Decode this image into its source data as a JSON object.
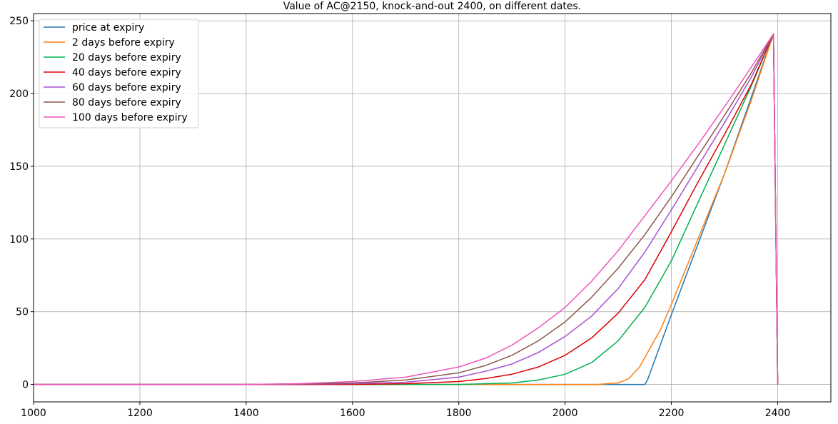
{
  "chart_data": {
    "type": "line",
    "title": "Value of AC@2150, knock-and-out 2400, on different dates.",
    "xlabel": "",
    "ylabel": "",
    "xlim": [
      1000,
      2500
    ],
    "ylim": [
      -12,
      255
    ],
    "xticks": [
      1000,
      1200,
      1400,
      1600,
      1800,
      2000,
      2200,
      2400
    ],
    "yticks": [
      0,
      50,
      100,
      150,
      200,
      250
    ],
    "grid": true,
    "legend_position": "top-left",
    "series": [
      {
        "name": "price at expiry",
        "color": "#1f77b4",
        "x": [
          1000,
          1500,
          2000,
          2140,
          2150,
          2155,
          2200,
          2300,
          2392,
          2400
        ],
        "y": [
          0,
          0,
          0,
          0,
          0,
          3,
          48,
          145,
          241,
          0
        ]
      },
      {
        "name": "2 days before expiry",
        "color": "#ff7f0e",
        "x": [
          1000,
          1500,
          2000,
          2060,
          2080,
          2100,
          2120,
          2140,
          2160,
          2180,
          2200,
          2250,
          2300,
          2350,
          2392,
          2400
        ],
        "y": [
          0,
          0,
          0,
          0,
          0.5,
          1,
          4,
          12,
          25,
          38,
          55,
          100,
          145,
          195,
          241,
          0
        ]
      },
      {
        "name": "20 days before expiry",
        "color": "#00b050",
        "x": [
          1000,
          1500,
          1700,
          1800,
          1900,
          1950,
          2000,
          2050,
          2100,
          2150,
          2200,
          2250,
          2300,
          2350,
          2392,
          2400
        ],
        "y": [
          0,
          0,
          0,
          0,
          1,
          3,
          7,
          15,
          30,
          53,
          85,
          125,
          165,
          205,
          241,
          0
        ]
      },
      {
        "name": "40 days before expiry",
        "color": "#dd0000",
        "x": [
          1000,
          1400,
          1600,
          1700,
          1800,
          1850,
          1900,
          1950,
          2000,
          2050,
          2100,
          2150,
          2200,
          2250,
          2300,
          2350,
          2392,
          2400
        ],
        "y": [
          0,
          0,
          0,
          0.5,
          2,
          4,
          7,
          12,
          20,
          32,
          49,
          72,
          105,
          139,
          172,
          206,
          241,
          0
        ]
      },
      {
        "name": "60 days before expiry",
        "color": "#a84fd1",
        "x": [
          1000,
          1400,
          1600,
          1700,
          1800,
          1850,
          1900,
          1950,
          2000,
          2050,
          2100,
          2150,
          2200,
          2250,
          2300,
          2350,
          2392,
          2400
        ],
        "y": [
          0,
          0,
          0.5,
          1.5,
          5,
          9,
          14,
          22,
          33,
          47,
          66,
          91,
          120,
          150,
          180,
          211,
          241,
          0
        ]
      },
      {
        "name": "80 days before expiry",
        "color": "#8c564b",
        "x": [
          1000,
          1400,
          1600,
          1700,
          1800,
          1850,
          1900,
          1950,
          2000,
          2050,
          2100,
          2150,
          2200,
          2250,
          2300,
          2350,
          2392,
          2400
        ],
        "y": [
          0,
          0,
          1,
          3,
          8,
          13,
          20,
          30,
          43,
          60,
          80,
          103,
          129,
          157,
          185,
          214,
          241,
          0
        ]
      },
      {
        "name": "100 days before expiry",
        "color": "#ee55bb",
        "x": [
          1000,
          1400,
          1500,
          1600,
          1700,
          1800,
          1850,
          1900,
          1950,
          2000,
          2050,
          2100,
          2150,
          2200,
          2250,
          2300,
          2350,
          2392,
          2400
        ],
        "y": [
          0,
          0,
          0.5,
          2,
          5,
          12,
          18,
          27,
          39,
          53,
          71,
          92,
          116,
          140,
          165,
          191,
          218,
          241,
          0
        ]
      }
    ]
  }
}
